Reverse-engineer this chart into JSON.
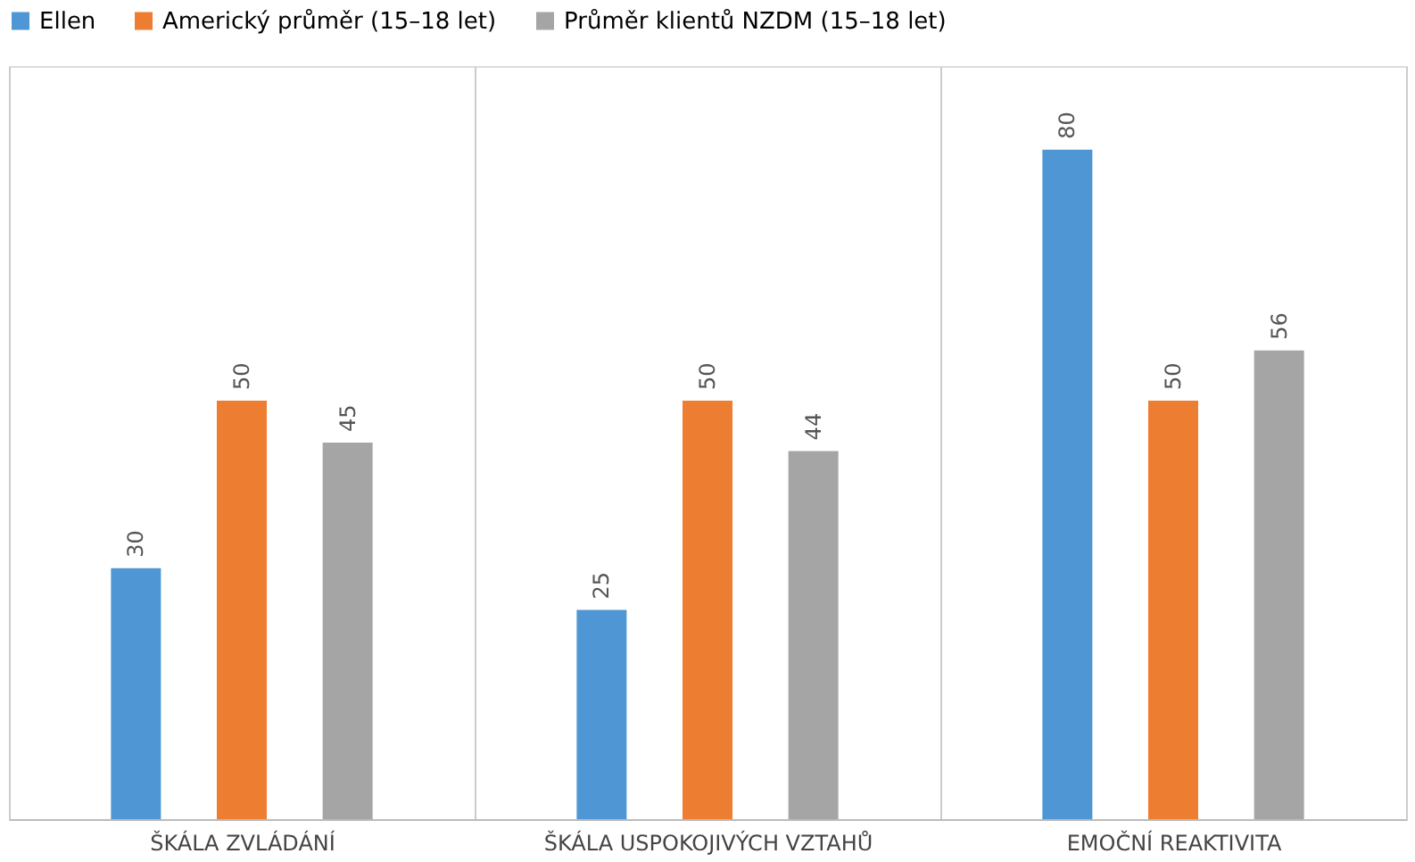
{
  "chart_data": {
    "type": "bar",
    "categories": [
      "ŠKÁLA ZVLÁDÁNÍ",
      "ŠKÁLA USPOKOJIVÝCH VZTAHŮ",
      "EMOČNÍ REAKTIVITA"
    ],
    "series": [
      {
        "name": "Ellen",
        "color": "#4e97d4",
        "values": [
          30,
          25,
          80
        ]
      },
      {
        "name": "Americký průměr (15–18 let)",
        "color": "#ed7d31",
        "values": [
          50,
          50,
          50
        ]
      },
      {
        "name": "Průměr klientů NZDM (15–18 let)",
        "color": "#a5a5a5",
        "values": [
          45,
          44,
          56
        ]
      }
    ],
    "tick_labels": "x",
    "ylim": [
      0,
      90
    ],
    "data_labels": true,
    "grid": "x",
    "legend": "top"
  }
}
